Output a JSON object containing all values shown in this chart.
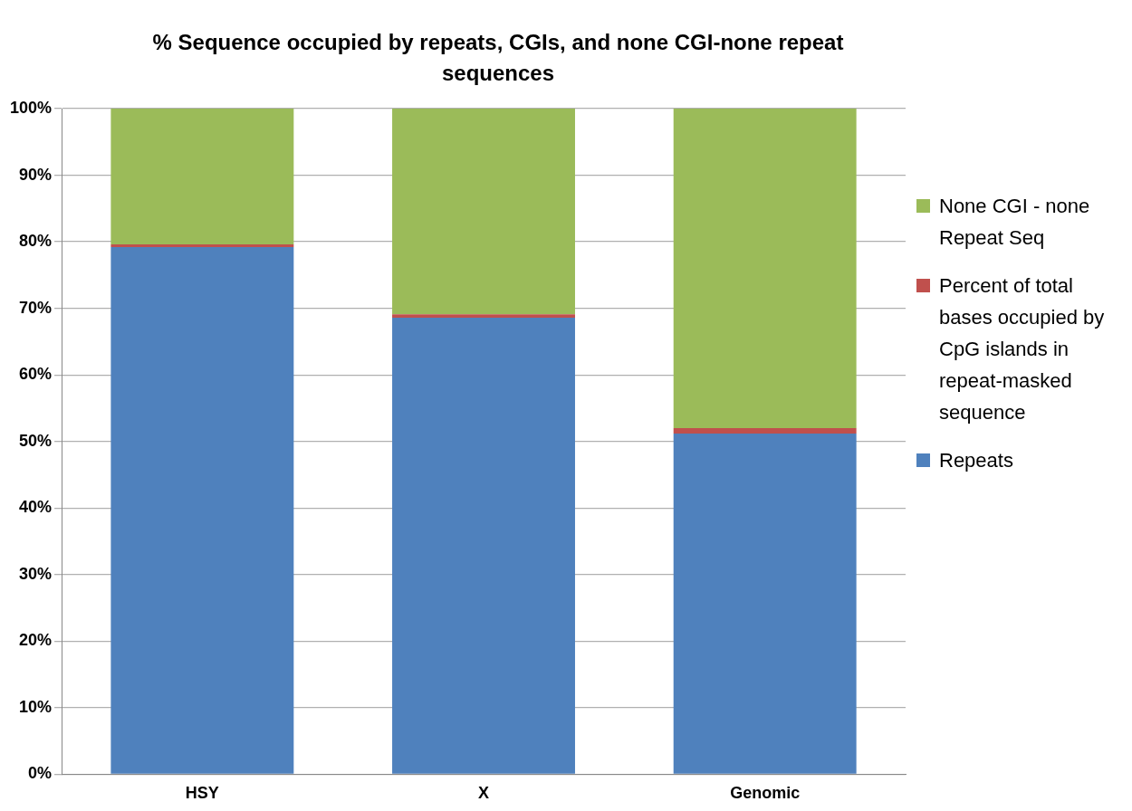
{
  "chart_data": {
    "type": "bar",
    "title": "% Sequence occupied by repeats, CGIs, and none CGI-none repeat sequences",
    "categories": [
      "HSY",
      "X",
      "Genomic"
    ],
    "stacked": true,
    "series": [
      {
        "name": "Repeats",
        "color": "#4f81bd",
        "values": [
          79.2,
          68.6,
          51.2
        ]
      },
      {
        "name": "Percent of total bases occupied by CpG islands in repeat-masked sequence",
        "color": "#c0504d",
        "values": [
          0.4,
          0.5,
          0.8
        ]
      },
      {
        "name": "None CGI - none Repeat Seq",
        "color": "#9bbb59",
        "values": [
          20.4,
          30.9,
          48.0
        ]
      }
    ],
    "ylim": [
      0,
      100
    ],
    "yticks": [
      {
        "value": 0,
        "label": "0%"
      },
      {
        "value": 10,
        "label": "10%"
      },
      {
        "value": 20,
        "label": "20%"
      },
      {
        "value": 30,
        "label": "30%"
      },
      {
        "value": 40,
        "label": "40%"
      },
      {
        "value": 50,
        "label": "50%"
      },
      {
        "value": 60,
        "label": "60%"
      },
      {
        "value": 70,
        "label": "70%"
      },
      {
        "value": 80,
        "label": "80%"
      },
      {
        "value": 90,
        "label": "90%"
      },
      {
        "value": 100,
        "label": "100%"
      }
    ],
    "grid": "y",
    "legend": "right"
  }
}
